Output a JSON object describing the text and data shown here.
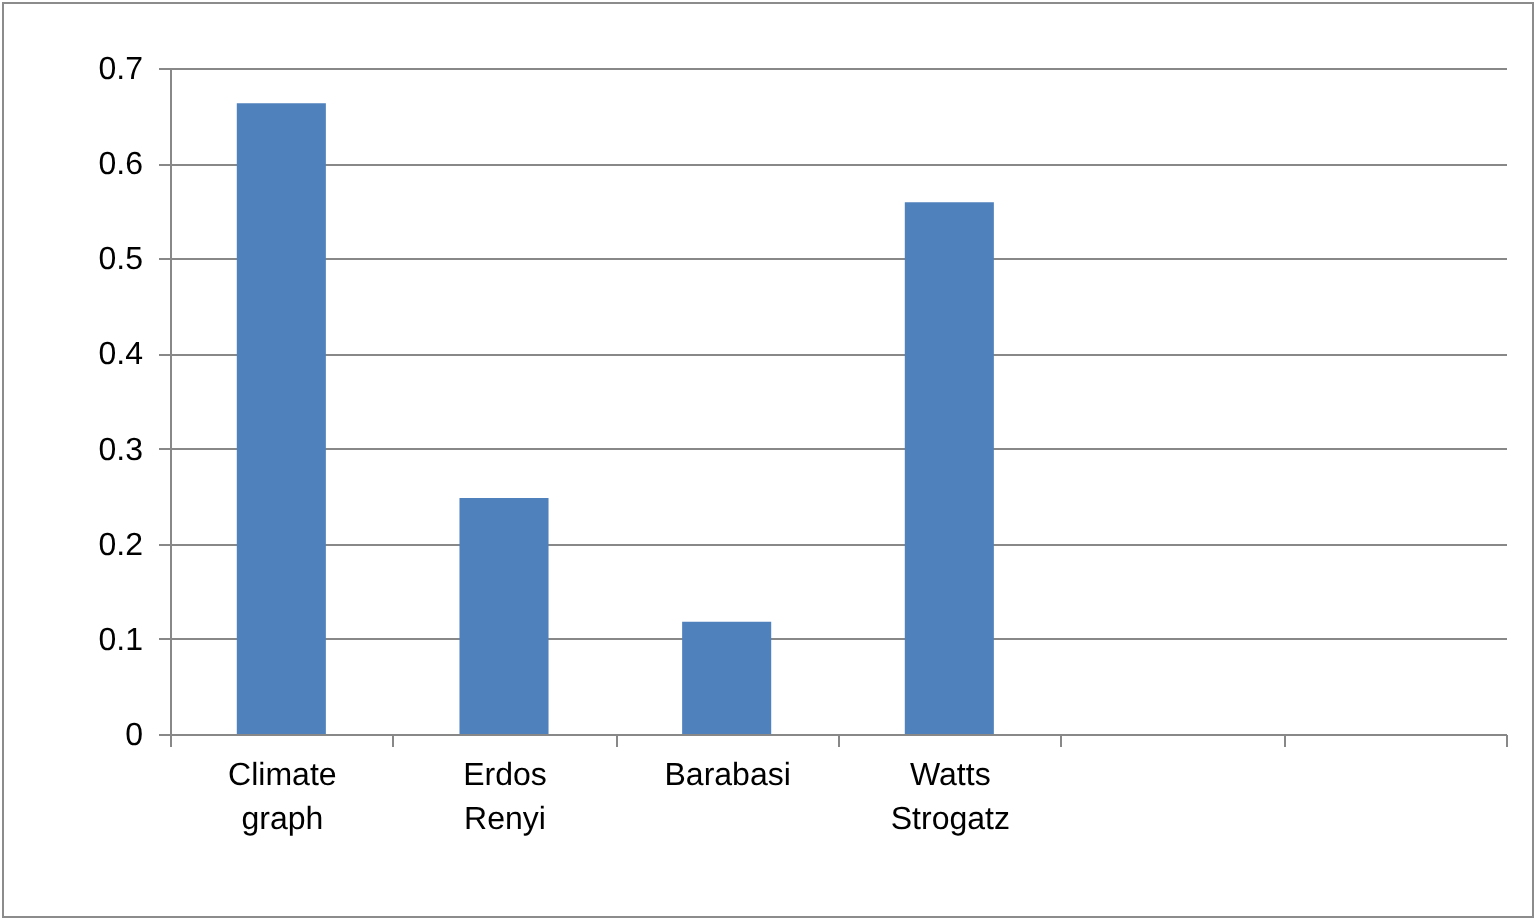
{
  "chart_data": {
    "type": "bar",
    "categories": [
      "Climate graph",
      "Erdos Renyi",
      "Barabasi",
      "Watts Strogatz",
      null,
      null
    ],
    "values": [
      0.663,
      0.248,
      0.118,
      0.559,
      null,
      null
    ],
    "color": "#4f81bd",
    "ylim": [
      0,
      0.7
    ],
    "yticks": [
      0,
      0.1,
      0.2,
      0.3,
      0.4,
      0.5,
      0.6,
      0.7
    ],
    "grid": "y"
  }
}
